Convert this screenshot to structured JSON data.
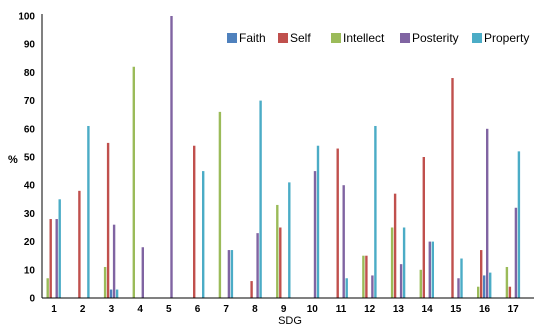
{
  "chart_data": {
    "type": "bar",
    "xlabel": "SDG",
    "ylabel": "%",
    "ylim": [
      0,
      100
    ],
    "yticks": [
      0,
      10,
      20,
      30,
      40,
      50,
      60,
      70,
      80,
      90,
      100
    ],
    "grid": false,
    "legend_position": "top-right",
    "categories": [
      "1",
      "2",
      "3",
      "4",
      "5",
      "6",
      "7",
      "8",
      "9",
      "10",
      "11",
      "12",
      "13",
      "14",
      "15",
      "16",
      "17"
    ],
    "series": [
      {
        "name": "Intellect",
        "color": "#9bbb59",
        "values": [
          7,
          0,
          11,
          82,
          0,
          0,
          66,
          0,
          33,
          0,
          0,
          15,
          25,
          10,
          0,
          4,
          11
        ]
      },
      {
        "name": "Self",
        "color": "#c0504d",
        "values": [
          28,
          38,
          55,
          0,
          0,
          54,
          0,
          6,
          25,
          0,
          53,
          15,
          37,
          50,
          78,
          17,
          4
        ]
      },
      {
        "name": "Faith",
        "color": "#4f81bd",
        "values": [
          0,
          0,
          3,
          0,
          0,
          0,
          0,
          0,
          0,
          0,
          0,
          0,
          0,
          0,
          0,
          8,
          0
        ]
      },
      {
        "name": "Posterity",
        "color": "#8064a2",
        "values": [
          28,
          0,
          26,
          18,
          100,
          0,
          17,
          23,
          0,
          45,
          40,
          8,
          12,
          20,
          7,
          60,
          32
        ]
      },
      {
        "name": "Property",
        "color": "#4bacc6",
        "values": [
          35,
          61,
          3,
          0,
          0,
          45,
          17,
          70,
          41,
          54,
          7,
          61,
          25,
          20,
          14,
          9,
          52
        ]
      }
    ],
    "legend_order": [
      "Faith",
      "Self",
      "Intellect",
      "Posterity",
      "Property"
    ]
  }
}
